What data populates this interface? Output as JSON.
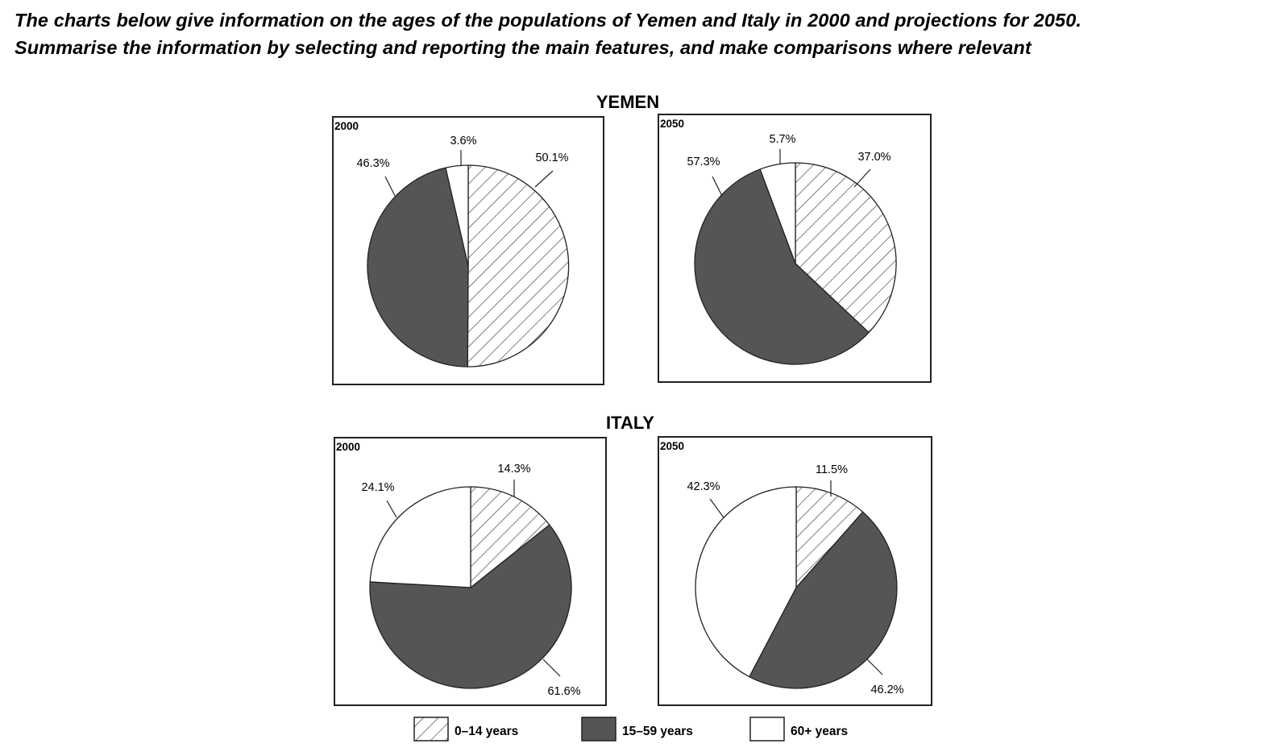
{
  "prompt": {
    "line1": "The charts below give information on the ages of the populations of Yemen and Italy in 2000 and projections for 2050.",
    "line2": "Summarise the information by selecting and reporting the main features, and make comparisons where relevant"
  },
  "colors": {
    "age_0_14_fill": "#ffffff",
    "age_0_14_hatch": "#3a3a3a",
    "age_15_59": "#555555",
    "age_60_plus": "#ffffff",
    "outline": "#222222"
  },
  "legend": [
    {
      "key": "age_0_14",
      "label": "0–14 years"
    },
    {
      "key": "age_15_59",
      "label": "15–59 years"
    },
    {
      "key": "age_60_plus",
      "label": "60+ years"
    }
  ],
  "chart_data": [
    {
      "type": "pie",
      "country": "YEMEN",
      "year": "2000",
      "slices": [
        {
          "key": "age_0_14",
          "value": 50.1,
          "label": "50.1%"
        },
        {
          "key": "age_15_59",
          "value": 46.3,
          "label": "46.3%"
        },
        {
          "key": "age_60_plus",
          "value": 3.6,
          "label": "3.6%"
        }
      ]
    },
    {
      "type": "pie",
      "country": "YEMEN",
      "year": "2050",
      "slices": [
        {
          "key": "age_0_14",
          "value": 37.0,
          "label": "37.0%"
        },
        {
          "key": "age_15_59",
          "value": 57.3,
          "label": "57.3%"
        },
        {
          "key": "age_60_plus",
          "value": 5.7,
          "label": "5.7%"
        }
      ]
    },
    {
      "type": "pie",
      "country": "ITALY",
      "year": "2000",
      "slices": [
        {
          "key": "age_0_14",
          "value": 14.3,
          "label": "14.3%"
        },
        {
          "key": "age_15_59",
          "value": 61.6,
          "label": "61.6%"
        },
        {
          "key": "age_60_plus",
          "value": 24.1,
          "label": "24.1%"
        }
      ]
    },
    {
      "type": "pie",
      "country": "ITALY",
      "year": "2050",
      "slices": [
        {
          "key": "age_0_14",
          "value": 11.5,
          "label": "11.5%"
        },
        {
          "key": "age_15_59",
          "value": 46.2,
          "label": "46.2%"
        },
        {
          "key": "age_60_plus",
          "value": 42.3,
          "label": "42.3%"
        }
      ]
    }
  ]
}
